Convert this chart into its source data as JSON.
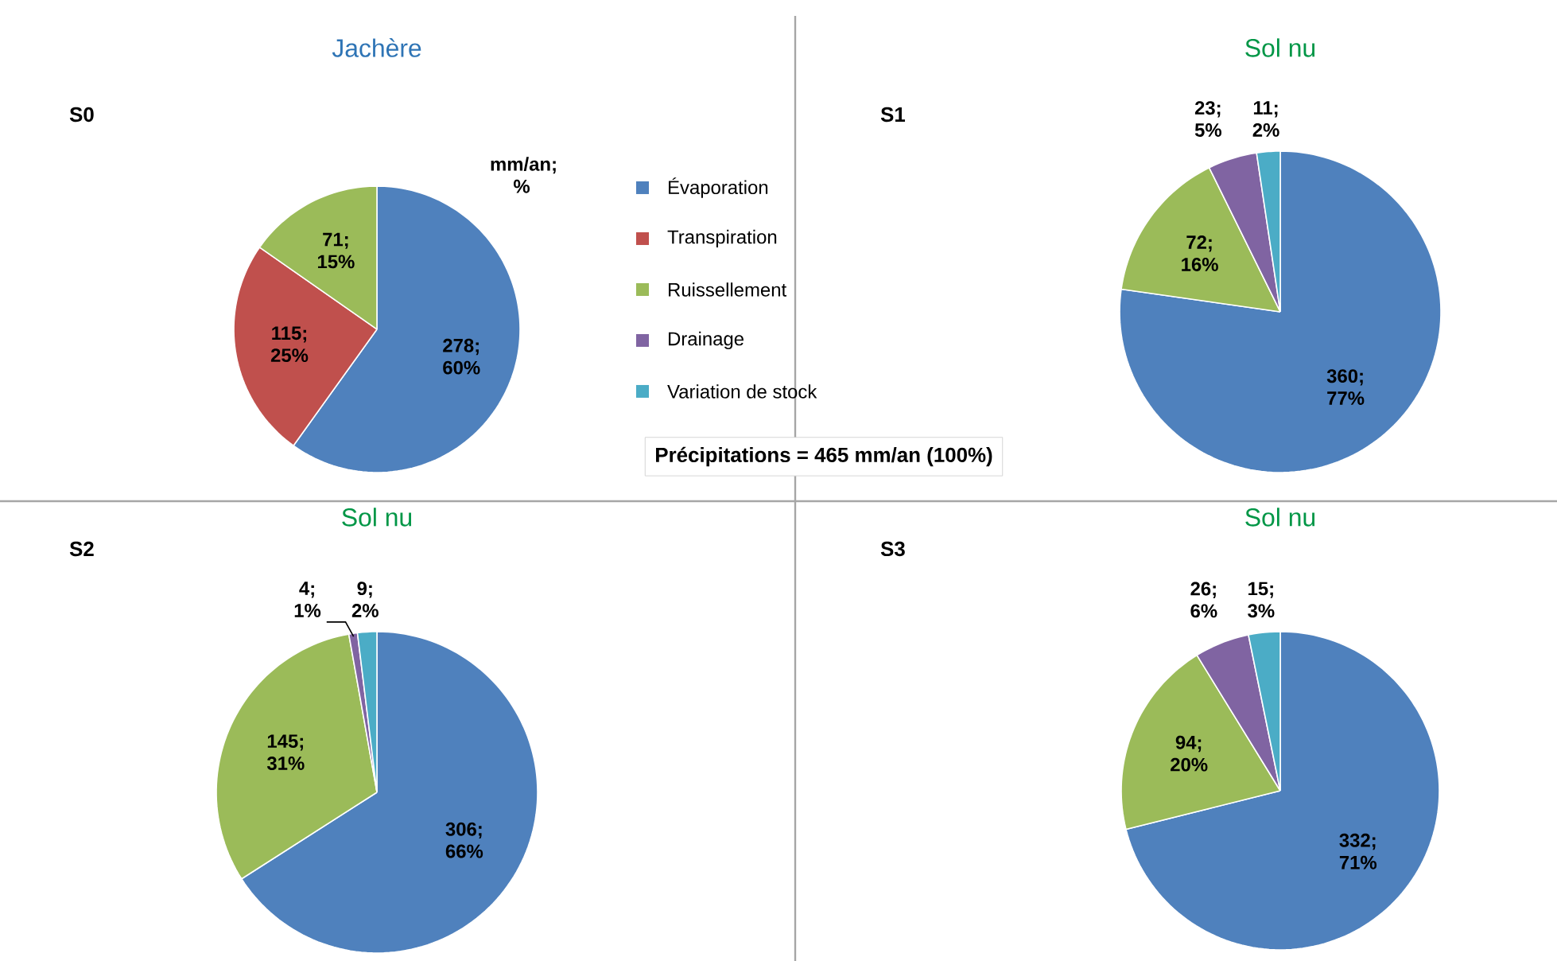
{
  "chart_data": [
    {
      "type": "pie",
      "title": "Jachère",
      "categories": [
        "Évaporation",
        "Transpiration",
        "Ruissellement",
        "Drainage",
        "Variation de stock"
      ],
      "values": [
        278,
        115,
        71,
        null,
        null
      ],
      "value_labels": [
        "278; 60%",
        "115; 25%",
        "71; 15%",
        null,
        null
      ],
      "colors": [
        "#4f81bd",
        "#c0504d",
        "#9bbb59",
        "#8064a2",
        "#4bacc6"
      ],
      "legend": "right",
      "annotations": [
        "S0",
        "mm/an; %",
        "Précipitations = 465 mm/an (100%)"
      ]
    },
    {
      "type": "pie",
      "title": "Sol nu",
      "categories": [
        null,
        null,
        null,
        null,
        null
      ],
      "values": [
        360,
        null,
        72,
        23,
        11
      ],
      "value_labels": [
        "360; 77%",
        null,
        "72; 16%",
        "23; 5%",
        "11; 2%"
      ],
      "colors": [
        "#4f81bd",
        "#c0504d",
        "#9bbb59",
        "#8064a2",
        "#4bacc6"
      ],
      "annotations": [
        "S1"
      ]
    },
    {
      "type": "pie",
      "title": "Sol nu",
      "categories": [
        null,
        null,
        null,
        null,
        null
      ],
      "values": [
        306,
        null,
        145,
        4,
        9
      ],
      "value_labels": [
        "306; 66%",
        null,
        "145; 31%",
        "4; 1%",
        "9; 2%"
      ],
      "colors": [
        "#4f81bd",
        "#c0504d",
        "#9bbb59",
        "#8064a2",
        "#4bacc6"
      ],
      "annotations": [
        "S2"
      ]
    },
    {
      "type": "pie",
      "title": "Sol nu",
      "categories": [
        null,
        null,
        null,
        null,
        null
      ],
      "values": [
        332,
        null,
        94,
        26,
        15
      ],
      "value_labels": [
        "332; 71%",
        null,
        "94; 20%",
        "26; 6%",
        "15; 3%"
      ],
      "colors": [
        "#4f81bd",
        "#c0504d",
        "#9bbb59",
        "#8064a2",
        "#4bacc6"
      ],
      "annotations": [
        "S3"
      ]
    }
  ]
}
